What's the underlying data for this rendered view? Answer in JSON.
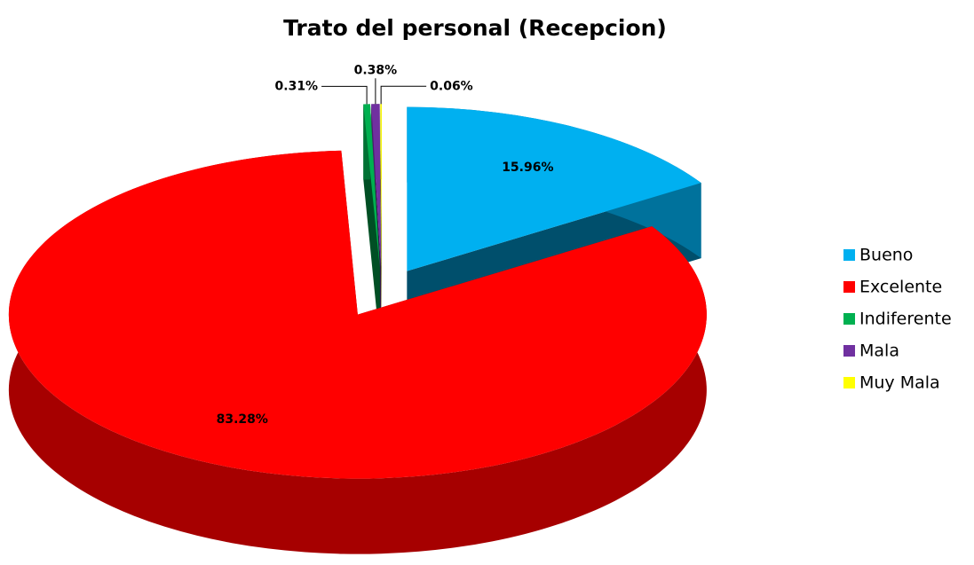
{
  "chart_data": {
    "type": "pie3d",
    "title": "Trato del personal (Recepcion)",
    "categories": [
      "Bueno",
      "Excelente",
      "Indiferente",
      "Mala",
      "Muy Mala"
    ],
    "values": [
      15.96,
      83.28,
      0.31,
      0.38,
      0.06
    ],
    "value_labels": [
      "15.96%",
      "83.28%",
      "0.31%",
      "0.38%",
      "0.06%"
    ],
    "colors": [
      "#00b0f0",
      "#ff0000",
      "#00b050",
      "#7030a0",
      "#ffff00"
    ],
    "legend": "right"
  }
}
